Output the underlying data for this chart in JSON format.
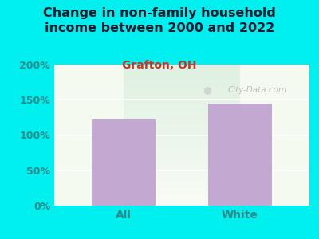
{
  "title": "Change in non-family household\nincome between 2000 and 2022",
  "subtitle": "Grafton, OH",
  "categories": [
    "All",
    "White"
  ],
  "values": [
    122,
    145
  ],
  "bar_color": "#c3a8d1",
  "ylim": [
    0,
    200
  ],
  "yticks": [
    0,
    50,
    100,
    150,
    200
  ],
  "ytick_labels": [
    "0%",
    "50%",
    "100%",
    "150%",
    "200%"
  ],
  "title_fontsize": 11.5,
  "subtitle_fontsize": 10,
  "tick_label_fontsize": 9,
  "xtick_label_fontsize": 10,
  "title_color": "#1a1a2e",
  "subtitle_color": "#c0392b",
  "tick_color": "#2e8b8b",
  "bg_outer": "#00f0f0",
  "bg_plot_color1": "#f5faf0",
  "bg_plot_color2": "#dff0e0",
  "watermark": "City-Data.com",
  "grid_color": "#ffffff"
}
